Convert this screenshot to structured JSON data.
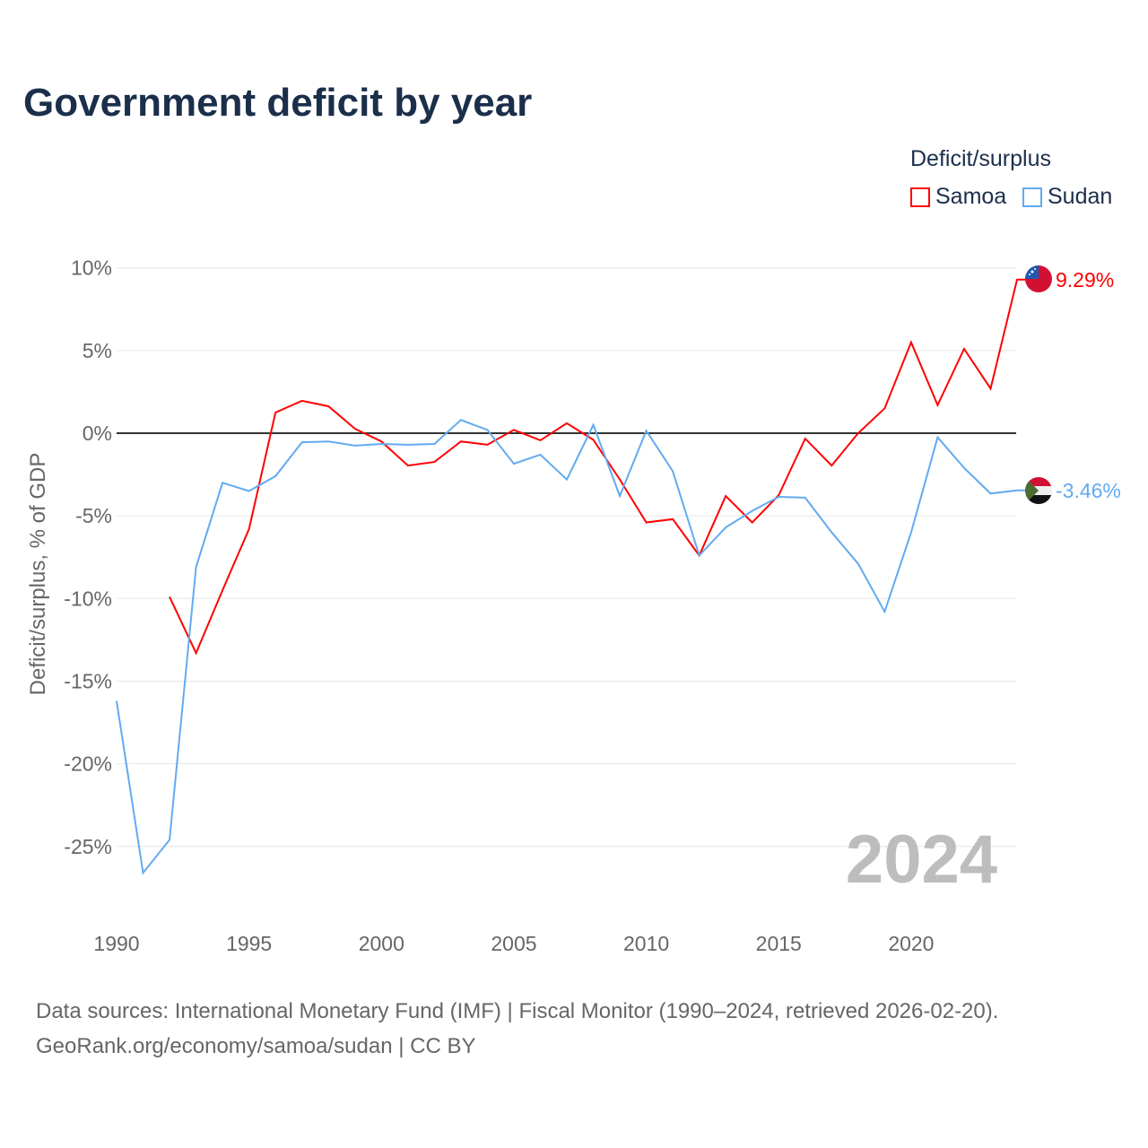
{
  "chart_data": {
    "type": "line",
    "title": "Government deficit by year",
    "xlabel": "",
    "ylabel": "Deficit/surplus, % of GDP",
    "xlim": [
      1990,
      2024
    ],
    "ylim": [
      -30,
      12
    ],
    "y_ticks": [
      10,
      5,
      0,
      -5,
      -10,
      -15,
      -20,
      -25
    ],
    "y_tick_labels": [
      "10%",
      "5%",
      "0%",
      "-5%",
      "-10%",
      "-15%",
      "-20%",
      "-25%"
    ],
    "x_ticks": [
      1990,
      1995,
      2000,
      2005,
      2010,
      2015,
      2020
    ],
    "x_tick_labels": [
      "1990",
      "1995",
      "2000",
      "2005",
      "2010",
      "2015",
      "2020"
    ],
    "grid": true,
    "legend_title": "Deficit/surplus",
    "legend_placement": "top-right",
    "year_watermark": "2024",
    "series": [
      {
        "name": "Samoa",
        "color": "#ff0000",
        "end_label": "9.29%",
        "x": [
          1992,
          1993,
          1994,
          1995,
          1996,
          1997,
          1998,
          1999,
          2000,
          2001,
          2002,
          2003,
          2004,
          2005,
          2006,
          2007,
          2008,
          2009,
          2010,
          2011,
          2012,
          2013,
          2014,
          2015,
          2016,
          2017,
          2018,
          2019,
          2020,
          2021,
          2022,
          2023,
          2024
        ],
        "values": [
          -9.9,
          -13.3,
          -9.5,
          -5.8,
          1.25,
          1.96,
          1.63,
          0.27,
          -0.5,
          -1.96,
          -1.74,
          -0.5,
          -0.7,
          0.2,
          -0.43,
          0.6,
          -0.4,
          -2.8,
          -5.4,
          -5.2,
          -7.4,
          -3.8,
          -5.4,
          -3.75,
          -0.33,
          -1.96,
          0.0,
          1.5,
          5.5,
          1.7,
          5.1,
          2.7,
          9.29
        ]
      },
      {
        "name": "Sudan",
        "color": "#62aaf0",
        "end_label": "-3.46%",
        "x": [
          1990,
          1991,
          1992,
          1993,
          1994,
          1995,
          1996,
          1997,
          1998,
          1999,
          2000,
          2001,
          2002,
          2003,
          2004,
          2005,
          2006,
          2007,
          2008,
          2009,
          2010,
          2011,
          2012,
          2013,
          2014,
          2015,
          2016,
          2017,
          2018,
          2019,
          2020,
          2021,
          2022,
          2023,
          2024
        ],
        "values": [
          -16.2,
          -26.6,
          -24.6,
          -8.1,
          -3.0,
          -3.5,
          -2.6,
          -0.55,
          -0.5,
          -0.75,
          -0.65,
          -0.7,
          -0.65,
          0.8,
          0.2,
          -1.85,
          -1.3,
          -2.8,
          0.5,
          -3.8,
          0.15,
          -2.3,
          -7.4,
          -5.7,
          -4.7,
          -3.85,
          -3.9,
          -6.0,
          -7.9,
          -10.8,
          -6.0,
          -0.25,
          -2.1,
          -3.65,
          -3.46
        ]
      }
    ]
  },
  "source": {
    "line1": "Data sources: International Monetary Fund (IMF) | Fiscal Monitor (1990–2024, retrieved 2026-02-20).",
    "line2": "GeoRank.org/economy/samoa/sudan | CC BY"
  }
}
